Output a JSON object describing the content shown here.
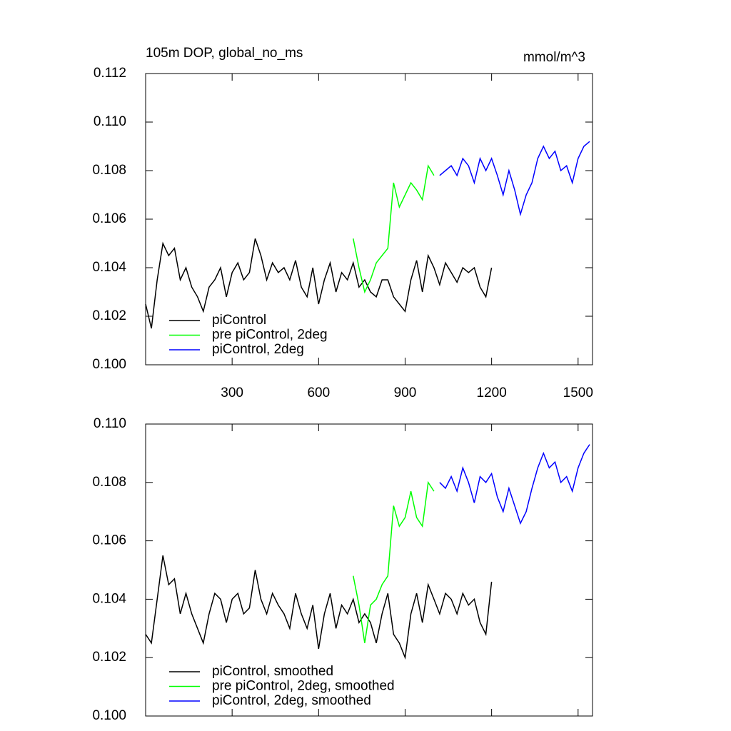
{
  "chart_data": [
    {
      "type": "line",
      "title": "105m DOP, global_no_ms",
      "y_units": "mmol/m^3",
      "xlim": [
        0,
        1550
      ],
      "xticks": [
        300,
        600,
        900,
        1200,
        1500
      ],
      "ylim": [
        0.1,
        0.112
      ],
      "yticks": [
        {
          "value": 0.1,
          "label": "0.100"
        },
        0.102,
        0.104,
        0.106,
        0.108,
        {
          "value": 0.11,
          "label": "0.110"
        },
        0.112
      ],
      "legend": "lower left",
      "series": [
        {
          "name": "piControl",
          "color": "#000000",
          "x": [
            0,
            20,
            40,
            60,
            80,
            100,
            120,
            140,
            160,
            180,
            200,
            220,
            240,
            260,
            280,
            300,
            320,
            340,
            360,
            380,
            400,
            420,
            440,
            460,
            480,
            500,
            520,
            540,
            560,
            580,
            600,
            620,
            640,
            660,
            680,
            700,
            720,
            740,
            760,
            780,
            800,
            820,
            840,
            860,
            880,
            900,
            920,
            940,
            960,
            980,
            1000,
            1020,
            1040,
            1060,
            1080,
            1100,
            1120,
            1140,
            1160,
            1180,
            1200
          ],
          "values": [
            0.1025,
            0.1015,
            0.1035,
            0.105,
            0.1045,
            0.1048,
            0.1035,
            0.104,
            0.1032,
            0.1028,
            0.1022,
            0.1032,
            0.1035,
            0.104,
            0.1028,
            0.1038,
            0.1042,
            0.1035,
            0.1038,
            0.1052,
            0.1045,
            0.1035,
            0.1042,
            0.1038,
            0.104,
            0.1035,
            0.1043,
            0.1032,
            0.1028,
            0.104,
            0.1025,
            0.1035,
            0.1042,
            0.103,
            0.1038,
            0.1035,
            0.1042,
            0.1032,
            0.1035,
            0.103,
            0.1028,
            0.1035,
            0.1035,
            0.1028,
            0.1025,
            0.1022,
            0.1035,
            0.1043,
            0.103,
            0.1045,
            0.104,
            0.1033,
            0.1042,
            0.1038,
            0.1034,
            0.104,
            0.1038,
            0.104,
            0.1032,
            0.1028,
            0.104
          ]
        },
        {
          "name": "pre piControl, 2deg",
          "color": "#00ff00",
          "x": [
            720,
            740,
            760,
            780,
            800,
            820,
            840,
            860,
            880,
            900,
            920,
            940,
            960,
            980,
            1000
          ],
          "values": [
            0.1052,
            0.104,
            0.103,
            0.1035,
            0.1042,
            0.1045,
            0.1048,
            0.1075,
            0.1065,
            0.107,
            0.1075,
            0.1072,
            0.1068,
            0.1082,
            0.1078
          ]
        },
        {
          "name": "piControl, 2deg",
          "color": "#0000ff",
          "x": [
            1020,
            1040,
            1060,
            1080,
            1100,
            1120,
            1140,
            1160,
            1180,
            1200,
            1220,
            1240,
            1260,
            1280,
            1300,
            1320,
            1340,
            1360,
            1380,
            1400,
            1420,
            1440,
            1460,
            1480,
            1500,
            1520,
            1540
          ],
          "values": [
            0.1078,
            0.108,
            0.1082,
            0.1078,
            0.1085,
            0.1082,
            0.1075,
            0.1085,
            0.108,
            0.1085,
            0.1078,
            0.107,
            0.108,
            0.1072,
            0.1062,
            0.107,
            0.1075,
            0.1085,
            0.109,
            0.1085,
            0.1088,
            0.108,
            0.1082,
            0.1075,
            0.1085,
            0.109,
            0.1092
          ]
        }
      ]
    },
    {
      "type": "line",
      "xlim": [
        0,
        1550
      ],
      "xticks": [
        300,
        600,
        900,
        1200,
        1500
      ],
      "ylim": [
        0.1,
        0.11
      ],
      "yticks": [
        {
          "value": 0.1,
          "label": "0.100"
        },
        0.102,
        0.104,
        0.106,
        0.108,
        {
          "value": 0.11,
          "label": "0.110"
        }
      ],
      "legend": "lower left",
      "series": [
        {
          "name": "piControl, smoothed",
          "color": "#000000",
          "x": [
            0,
            20,
            40,
            60,
            80,
            100,
            120,
            140,
            160,
            180,
            200,
            220,
            240,
            260,
            280,
            300,
            320,
            340,
            360,
            380,
            400,
            420,
            440,
            460,
            480,
            500,
            520,
            540,
            560,
            580,
            600,
            620,
            640,
            660,
            680,
            700,
            720,
            740,
            760,
            780,
            800,
            820,
            840,
            860,
            880,
            900,
            920,
            940,
            960,
            980,
            1000,
            1020,
            1040,
            1060,
            1080,
            1100,
            1120,
            1140,
            1160,
            1180,
            1200
          ],
          "values": [
            0.1028,
            0.1025,
            0.104,
            0.1055,
            0.1045,
            0.1047,
            0.1035,
            0.1042,
            0.1035,
            0.103,
            0.1025,
            0.1035,
            0.1042,
            0.104,
            0.1032,
            0.104,
            0.1042,
            0.1035,
            0.1037,
            0.105,
            0.104,
            0.1035,
            0.1042,
            0.1038,
            0.1035,
            0.103,
            0.1042,
            0.1035,
            0.103,
            0.1038,
            0.1023,
            0.1035,
            0.1042,
            0.103,
            0.1038,
            0.1035,
            0.104,
            0.1032,
            0.1035,
            0.1032,
            0.1025,
            0.1035,
            0.1042,
            0.1028,
            0.1025,
            0.102,
            0.1035,
            0.1042,
            0.1032,
            0.1045,
            0.104,
            0.1035,
            0.1042,
            0.104,
            0.1035,
            0.1042,
            0.1038,
            0.104,
            0.1032,
            0.1028,
            0.1046
          ]
        },
        {
          "name": "pre piControl, 2deg, smoothed",
          "color": "#00ff00",
          "x": [
            720,
            740,
            760,
            780,
            800,
            820,
            840,
            860,
            880,
            900,
            920,
            940,
            960,
            980,
            1000
          ],
          "values": [
            0.1048,
            0.1038,
            0.1025,
            0.1038,
            0.104,
            0.1045,
            0.1048,
            0.1072,
            0.1065,
            0.1068,
            0.1077,
            0.1068,
            0.1065,
            0.108,
            0.1077
          ]
        },
        {
          "name": "piControl, 2deg, smoothed",
          "color": "#0000ff",
          "x": [
            1020,
            1040,
            1060,
            1080,
            1100,
            1120,
            1140,
            1160,
            1180,
            1200,
            1220,
            1240,
            1260,
            1280,
            1300,
            1320,
            1340,
            1360,
            1380,
            1400,
            1420,
            1440,
            1460,
            1480,
            1500,
            1520,
            1540
          ],
          "values": [
            0.108,
            0.1078,
            0.1082,
            0.1077,
            0.1085,
            0.108,
            0.1073,
            0.1082,
            0.108,
            0.1083,
            0.1075,
            0.107,
            0.1078,
            0.1072,
            0.1066,
            0.107,
            0.1078,
            0.1085,
            0.109,
            0.1085,
            0.1087,
            0.108,
            0.1082,
            0.1077,
            0.1085,
            0.109,
            0.1093
          ]
        }
      ]
    }
  ]
}
